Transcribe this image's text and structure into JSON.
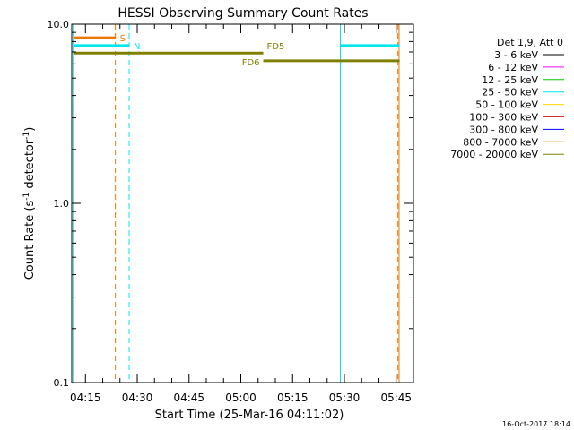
{
  "chart_data": {
    "type": "line",
    "title": "HESSI Observing Summary Count Rates",
    "xlabel": "Start Time (25-Mar-16 04:11:02)",
    "ylabel": "Count Rate (s",
    "ylabel_sup1": "-1",
    "ylabel_mid": " detector",
    "ylabel_sup2": "-1",
    "ylabel_end": ")",
    "yscale": "log",
    "ylim": [
      0.1,
      10.0
    ],
    "y_ticks": [
      {
        "value": 0.1,
        "label": "0.1"
      },
      {
        "value": 1.0,
        "label": "1.0"
      },
      {
        "value": 10.0,
        "label": "10.0"
      }
    ],
    "xlim": [
      "04:11:02",
      "05:50:00"
    ],
    "x_ticks": [
      {
        "value": "04:15",
        "label": "04:15"
      },
      {
        "value": "04:30",
        "label": "04:30"
      },
      {
        "value": "04:45",
        "label": "04:45"
      },
      {
        "value": "05:00",
        "label": "05:00"
      },
      {
        "value": "05:15",
        "label": "05:15"
      },
      {
        "value": "05:30",
        "label": "05:30"
      },
      {
        "value": "05:45",
        "label": "05:45"
      }
    ],
    "legend_placement": "right",
    "legend_header": "Det 1,9, Att 0",
    "legend": [
      {
        "name": "3 - 6 keV",
        "color": "#000000"
      },
      {
        "name": "6 - 12 keV",
        "color": "#ff00ff"
      },
      {
        "name": "12 - 25 keV",
        "color": "#00cc00"
      },
      {
        "name": "25 - 50 keV",
        "color": "#00e5ee"
      },
      {
        "name": "50 - 100 keV",
        "color": "#ffd700"
      },
      {
        "name": "100 - 300 keV",
        "color": "#cc3333"
      },
      {
        "name": "300 - 800 keV",
        "color": "#0000ff"
      },
      {
        "name": "800 - 7000 keV",
        "color": "#ee7700"
      },
      {
        "name": "7000 - 20000 keV",
        "color": "#808000"
      }
    ],
    "vlines": [
      {
        "time": "04:11:30",
        "color": "#00e5ee",
        "style": "solid"
      },
      {
        "time": "04:23:40",
        "color": "#ee7700",
        "style": "dashed"
      },
      {
        "time": "04:27:40",
        "color": "#00e5ee",
        "style": "dashed"
      },
      {
        "time": "05:28:50",
        "color": "#00e5ee",
        "style": "solid"
      },
      {
        "time": "05:45:30",
        "color": "#ee7700",
        "style": "dashed"
      },
      {
        "time": "05:45:50",
        "color": "#ee7700",
        "style": "solid"
      }
    ],
    "segments": [
      {
        "label": "S",
        "start": "04:11:30",
        "end": "04:23:40",
        "y": 8.4,
        "color": "#ee7700",
        "label_pos": "right"
      },
      {
        "label": "N",
        "start": "04:11:30",
        "end": "04:27:40",
        "y": 7.6,
        "color": "#00e5ee",
        "label_pos": "right"
      },
      {
        "label": "FD5",
        "start": "04:11:30",
        "end": "05:06:30",
        "y": 6.9,
        "color": "#808000",
        "label_pos": "above-right"
      },
      {
        "label": "FD6",
        "start": "05:06:30",
        "end": "05:46:00",
        "y": 6.25,
        "color": "#808000",
        "label_pos": "below-left"
      },
      {
        "label": "",
        "start": "05:28:50",
        "end": "05:46:00",
        "y": 7.6,
        "color": "#00e5ee",
        "label_pos": "none"
      }
    ]
  },
  "footer": {
    "timestamp": "16-Oct-2017 18:14"
  }
}
